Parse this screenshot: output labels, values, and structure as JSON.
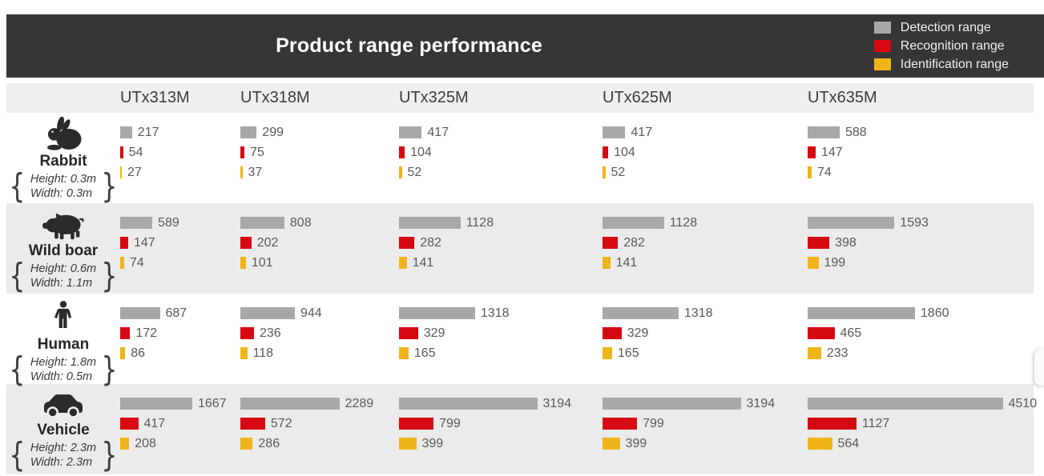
{
  "header": {
    "title": "Product range performance",
    "legend": [
      {
        "name": "Detection range",
        "icon": "detection-swatch-icon",
        "color": "#a8a8a8"
      },
      {
        "name": "Recognition range",
        "icon": "recognition-swatch-icon",
        "color": "#d60812"
      },
      {
        "name": "Identification range",
        "icon": "identification-swatch-icon",
        "color": "#f0b41b"
      }
    ]
  },
  "columns": [
    "UTx313M",
    "UTx318M",
    "UTx325M",
    "UTx625M",
    "UTx635M"
  ],
  "rows": [
    {
      "name": "Rabbit",
      "icon": "rabbit-icon",
      "height_spec": "Height: 0.3m",
      "width_spec": "Width: 0.3m",
      "cells": [
        [
          217,
          54,
          27
        ],
        [
          299,
          75,
          37
        ],
        [
          417,
          104,
          52
        ],
        [
          417,
          104,
          52
        ],
        [
          588,
          147,
          74
        ]
      ]
    },
    {
      "name": "Wild boar",
      "icon": "boar-icon",
      "height_spec": "Height: 0.6m",
      "width_spec": "Width: 1.1m",
      "cells": [
        [
          589,
          147,
          74
        ],
        [
          808,
          202,
          101
        ],
        [
          1128,
          282,
          141
        ],
        [
          1128,
          282,
          141
        ],
        [
          1593,
          398,
          199
        ]
      ]
    },
    {
      "name": "Human",
      "icon": "human-icon",
      "height_spec": "Height: 1.8m",
      "width_spec": "Width: 0.5m",
      "cells": [
        [
          687,
          172,
          86
        ],
        [
          944,
          236,
          118
        ],
        [
          1318,
          329,
          165
        ],
        [
          1318,
          329,
          165
        ],
        [
          1860,
          465,
          233
        ]
      ]
    },
    {
      "name": "Vehicle",
      "icon": "vehicle-icon",
      "height_spec": "Height: 2.3m",
      "width_spec": "Width: 2.3m",
      "cells": [
        [
          1667,
          417,
          208
        ],
        [
          2289,
          572,
          286
        ],
        [
          3194,
          799,
          399
        ],
        [
          3194,
          799,
          399
        ],
        [
          4510,
          1127,
          564
        ]
      ]
    }
  ],
  "chart_data": {
    "type": "bar",
    "title": "Product range performance",
    "orientation": "horizontal",
    "legend_position": "top-right",
    "legend": [
      "Detection range",
      "Recognition range",
      "Identification range"
    ],
    "series_colors": [
      "#a8a8a8",
      "#d60812",
      "#f0b41b"
    ],
    "categories": [
      "UTx313M",
      "UTx318M",
      "UTx325M",
      "UTx625M",
      "UTx635M"
    ],
    "groups": [
      {
        "group": "Rabbit",
        "height_m": 0.3,
        "width_m": 0.3,
        "series": [
          {
            "name": "Detection range",
            "values": [
              217,
              299,
              417,
              417,
              588
            ]
          },
          {
            "name": "Recognition range",
            "values": [
              54,
              75,
              104,
              104,
              147
            ]
          },
          {
            "name": "Identification range",
            "values": [
              27,
              37,
              52,
              52,
              74
            ]
          }
        ]
      },
      {
        "group": "Wild boar",
        "height_m": 0.6,
        "width_m": 1.1,
        "series": [
          {
            "name": "Detection range",
            "values": [
              589,
              808,
              1128,
              1128,
              1593
            ]
          },
          {
            "name": "Recognition range",
            "values": [
              147,
              202,
              282,
              282,
              398
            ]
          },
          {
            "name": "Identification range",
            "values": [
              74,
              101,
              141,
              141,
              199
            ]
          }
        ]
      },
      {
        "group": "Human",
        "height_m": 1.8,
        "width_m": 0.5,
        "series": [
          {
            "name": "Detection range",
            "values": [
              687,
              944,
              1318,
              1318,
              1860
            ]
          },
          {
            "name": "Recognition range",
            "values": [
              172,
              236,
              329,
              329,
              465
            ]
          },
          {
            "name": "Identification range",
            "values": [
              86,
              118,
              165,
              165,
              233
            ]
          }
        ]
      },
      {
        "group": "Vehicle",
        "height_m": 2.3,
        "width_m": 2.3,
        "series": [
          {
            "name": "Detection range",
            "values": [
              1667,
              2289,
              3194,
              3194,
              4510
            ]
          },
          {
            "name": "Recognition range",
            "values": [
              417,
              572,
              799,
              799,
              1127
            ]
          },
          {
            "name": "Identification range",
            "values": [
              208,
              286,
              399,
              399,
              564
            ]
          }
        ]
      }
    ]
  }
}
